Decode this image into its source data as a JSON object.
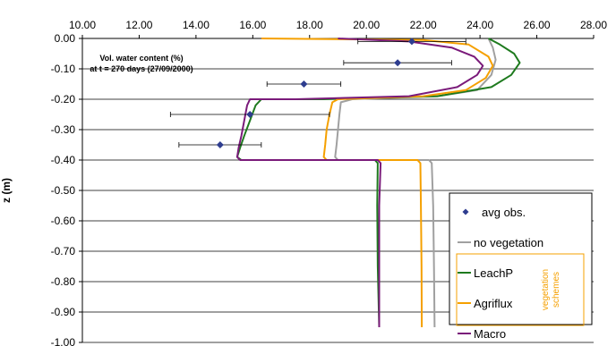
{
  "chart_data": {
    "type": "line",
    "title": "Vol. water content (%)",
    "subtitle": "at t = 270 days (27/09/2000)",
    "xlabel": "",
    "ylabel": "z (m)",
    "xlim": [
      10,
      28
    ],
    "ylim": [
      -1.0,
      0.0
    ],
    "x_ticks": [
      "10.00",
      "12.00",
      "14.00",
      "16.00",
      "18.00",
      "20.00",
      "22.00",
      "24.00",
      "26.00",
      "28.00"
    ],
    "y_ticks": [
      "0.00",
      "-0.10",
      "-0.20",
      "-0.30",
      "-0.40",
      "-0.50",
      "-0.60",
      "-0.70",
      "-0.80",
      "-0.90",
      "-1.00"
    ],
    "grid": "horizontal",
    "legend_position": "bottom-right",
    "legend_group_label": "vegetation schemes",
    "observations": {
      "name": "avg obs.",
      "color": "#2e3d8f",
      "points": [
        {
          "z": -0.01,
          "x": 21.6,
          "err_min": 19.7,
          "err_max": 23.5
        },
        {
          "z": -0.08,
          "x": 21.1,
          "err_min": 19.2,
          "err_max": 23.0
        },
        {
          "z": -0.15,
          "x": 17.8,
          "err_min": 16.5,
          "err_max": 19.1
        },
        {
          "z": -0.25,
          "x": 15.9,
          "err_min": 13.1,
          "err_max": 18.7
        },
        {
          "z": -0.35,
          "x": 14.85,
          "err_min": 13.4,
          "err_max": 16.3
        }
      ]
    },
    "series": [
      {
        "name": "no vegetation",
        "color": "#a0a0a0",
        "points": [
          [
            24.3,
            0.0
          ],
          [
            24.45,
            -0.03
          ],
          [
            24.55,
            -0.07
          ],
          [
            24.4,
            -0.12
          ],
          [
            23.9,
            -0.17
          ],
          [
            22.5,
            -0.19
          ],
          [
            19.5,
            -0.2
          ],
          [
            19.1,
            -0.21
          ],
          [
            19.05,
            -0.25
          ],
          [
            19.0,
            -0.3
          ],
          [
            18.95,
            -0.35
          ],
          [
            18.9,
            -0.39
          ],
          [
            19.0,
            -0.4
          ],
          [
            22.2,
            -0.4
          ],
          [
            22.3,
            -0.41
          ],
          [
            22.35,
            -0.55
          ],
          [
            22.38,
            -0.75
          ],
          [
            22.4,
            -0.95
          ]
        ]
      },
      {
        "name": "LeachP",
        "color": "#1e7a1e",
        "points": [
          [
            24.3,
            0.0
          ],
          [
            24.7,
            -0.02
          ],
          [
            25.2,
            -0.05
          ],
          [
            25.4,
            -0.08
          ],
          [
            25.1,
            -0.12
          ],
          [
            24.4,
            -0.16
          ],
          [
            22.5,
            -0.19
          ],
          [
            18.5,
            -0.2
          ],
          [
            16.3,
            -0.2
          ],
          [
            16.1,
            -0.22
          ],
          [
            15.9,
            -0.27
          ],
          [
            15.7,
            -0.32
          ],
          [
            15.55,
            -0.36
          ],
          [
            15.45,
            -0.39
          ],
          [
            15.6,
            -0.4
          ],
          [
            20.3,
            -0.4
          ],
          [
            20.4,
            -0.41
          ],
          [
            20.38,
            -0.55
          ],
          [
            20.4,
            -0.75
          ],
          [
            20.45,
            -0.95
          ]
        ]
      },
      {
        "name": "Agriflux",
        "color": "#f5a000",
        "points": [
          [
            16.3,
            0.0
          ],
          [
            22.0,
            -0.005
          ],
          [
            23.6,
            -0.02
          ],
          [
            24.3,
            -0.06
          ],
          [
            24.45,
            -0.09
          ],
          [
            24.2,
            -0.13
          ],
          [
            23.5,
            -0.17
          ],
          [
            22.0,
            -0.19
          ],
          [
            19.0,
            -0.2
          ],
          [
            18.8,
            -0.21
          ],
          [
            18.7,
            -0.25
          ],
          [
            18.6,
            -0.3
          ],
          [
            18.55,
            -0.35
          ],
          [
            18.5,
            -0.39
          ],
          [
            18.6,
            -0.4
          ],
          [
            21.8,
            -0.4
          ],
          [
            21.9,
            -0.41
          ],
          [
            21.92,
            -0.55
          ],
          [
            21.94,
            -0.75
          ],
          [
            21.95,
            -0.95
          ]
        ]
      },
      {
        "name": "Macro",
        "color": "#7a1a7a",
        "points": [
          [
            19.0,
            0.0
          ],
          [
            21.5,
            -0.01
          ],
          [
            23.0,
            -0.03
          ],
          [
            23.8,
            -0.06
          ],
          [
            24.1,
            -0.09
          ],
          [
            23.9,
            -0.12
          ],
          [
            23.2,
            -0.16
          ],
          [
            21.5,
            -0.19
          ],
          [
            17.5,
            -0.2
          ],
          [
            15.9,
            -0.2
          ],
          [
            15.8,
            -0.22
          ],
          [
            15.7,
            -0.27
          ],
          [
            15.6,
            -0.32
          ],
          [
            15.5,
            -0.36
          ],
          [
            15.45,
            -0.39
          ],
          [
            15.55,
            -0.4
          ],
          [
            20.4,
            -0.4
          ],
          [
            20.5,
            -0.41
          ],
          [
            20.45,
            -0.55
          ],
          [
            20.45,
            -0.75
          ],
          [
            20.45,
            -0.95
          ]
        ]
      }
    ]
  }
}
